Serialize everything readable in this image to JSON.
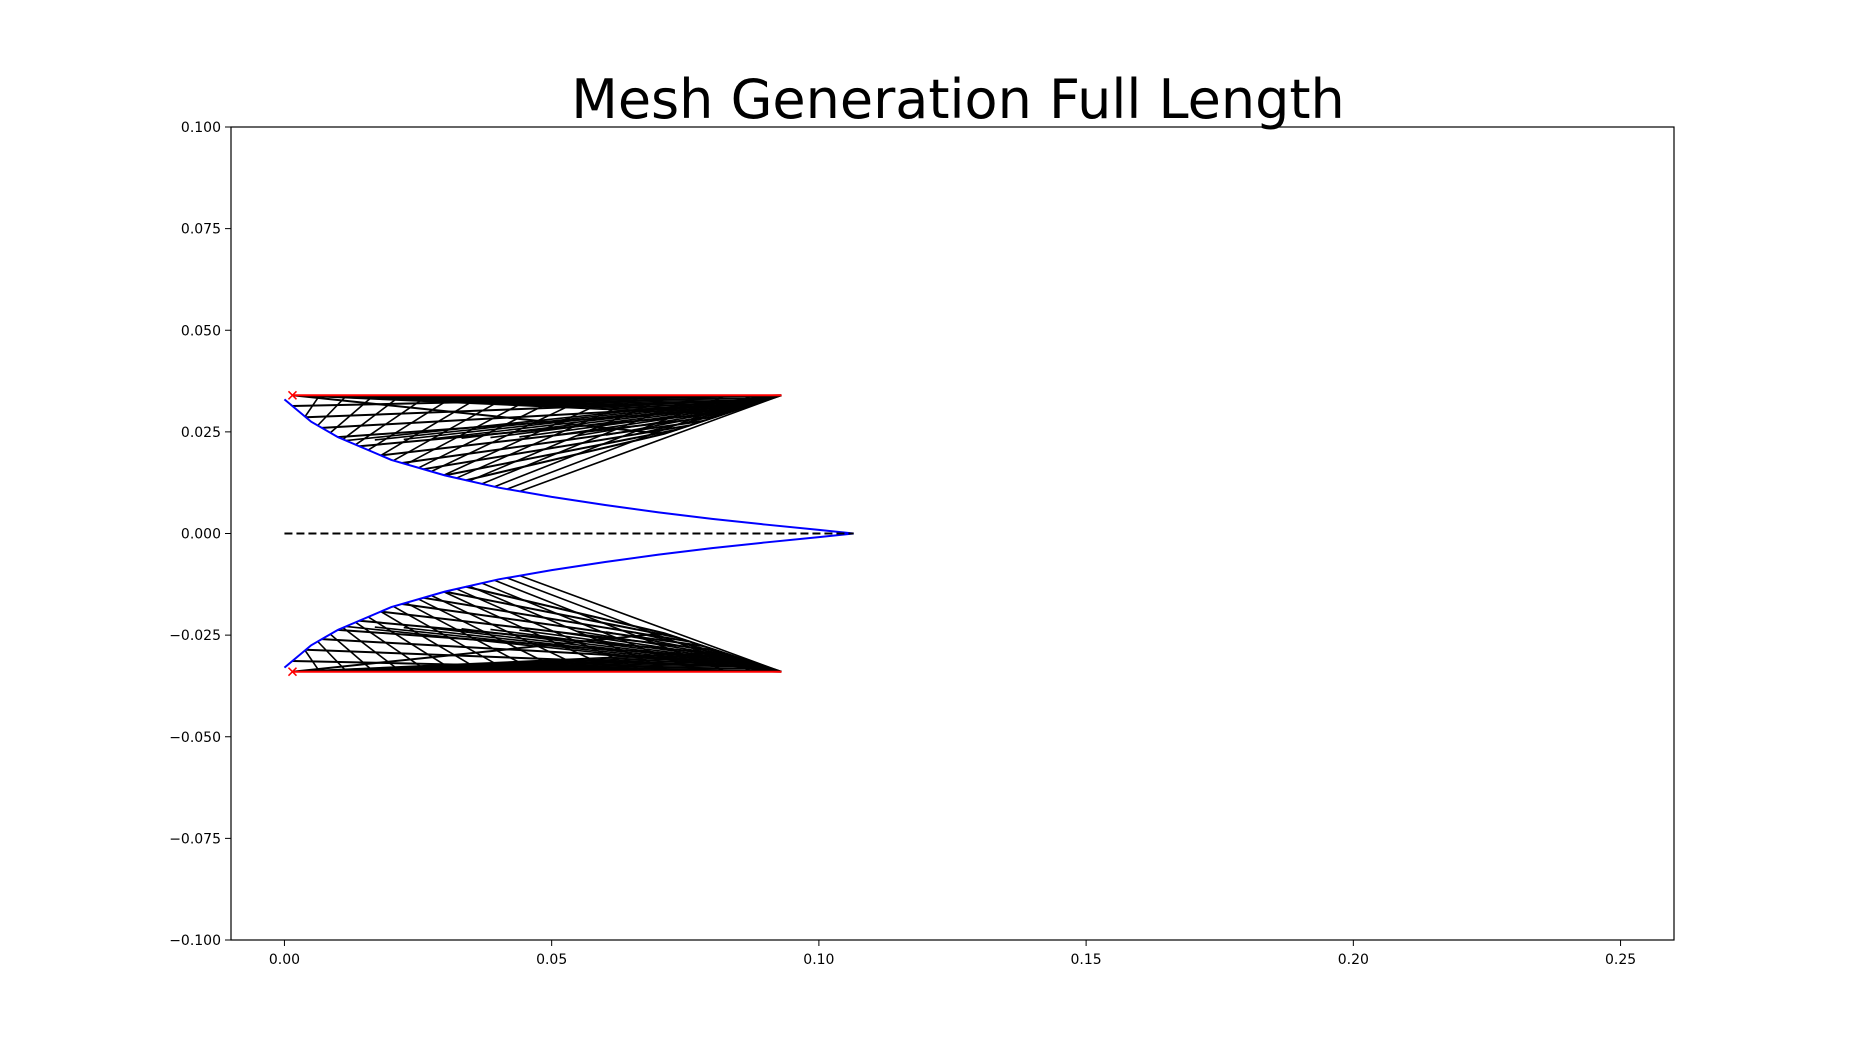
{
  "chart_data": {
    "type": "line",
    "title": "Mesh Generation Full Length",
    "xlabel": "",
    "ylabel": "",
    "xlim": [
      -0.01,
      0.26
    ],
    "ylim": [
      -0.1,
      0.1
    ],
    "grid": false,
    "x_ticks": [
      0.0,
      0.05,
      0.1,
      0.15,
      0.2,
      0.25
    ],
    "x_tick_labels": [
      "0.00",
      "0.05",
      "0.10",
      "0.15",
      "0.20",
      "0.25"
    ],
    "y_ticks": [
      0.1,
      0.075,
      0.05,
      0.025,
      0.0,
      -0.025,
      -0.05,
      -0.075,
      -0.1
    ],
    "y_tick_labels": [
      "0.100",
      "0.075",
      "0.050",
      "0.025",
      "0.000",
      "−0.025",
      "−0.050",
      "−0.075",
      "−0.100"
    ],
    "series": [
      {
        "role": "contour",
        "color": "#0000ff",
        "x": [
          0.0,
          0.005,
          0.01,
          0.02,
          0.03,
          0.04,
          0.05,
          0.06,
          0.07,
          0.08,
          0.09,
          0.1,
          0.1065
        ],
        "y": [
          0.033,
          0.0275,
          0.0237,
          0.0181,
          0.0143,
          0.0113,
          0.009,
          0.007,
          0.0052,
          0.0036,
          0.0022,
          0.0009,
          0.0
        ]
      },
      {
        "role": "centerline",
        "color": "#000000",
        "dash": true,
        "x": [
          0.0,
          0.1065
        ],
        "y": [
          0.0,
          0.0
        ]
      },
      {
        "role": "upper-boundary",
        "color": "#ff0000",
        "x": [
          0.0015,
          0.093
        ],
        "y": [
          0.034,
          0.034
        ]
      },
      {
        "role": "lower-boundary",
        "color": "#ff0000",
        "x": [
          0.0015,
          0.093
        ],
        "y": [
          -0.034,
          -0.034
        ]
      }
    ],
    "markers": [
      {
        "shape": "x",
        "color": "#ff0000",
        "x": 0.0015,
        "y": 0.034
      },
      {
        "shape": "x",
        "color": "#ff0000",
        "x": 0.0015,
        "y": -0.034
      }
    ],
    "mesh": {
      "color": "#000000",
      "apex_upper": [
        0.0015,
        0.034
      ],
      "apex_lower": [
        0.0015,
        -0.034
      ],
      "upper_outer_edge": {
        "x": [
          0.0015,
          0.093
        ],
        "y": [
          0.034,
          0.034
        ]
      },
      "upper_inner_edge": {
        "x": [
          0.0015,
          0.071
        ],
        "y": [
          0.034,
          0.0245
        ]
      },
      "lower_outer_edge": {
        "x": [
          0.0015,
          0.093
        ],
        "y": [
          -0.034,
          -0.034
        ]
      },
      "lower_inner_edge": {
        "x": [
          0.0015,
          0.071
        ],
        "y": [
          -0.034,
          -0.0245
        ]
      },
      "wall_points_x": [
        0.0015,
        0.004,
        0.007,
        0.01,
        0.014,
        0.018,
        0.022,
        0.026,
        0.03,
        0.034
      ],
      "stream_count": 12,
      "cross_count": 18
    }
  }
}
